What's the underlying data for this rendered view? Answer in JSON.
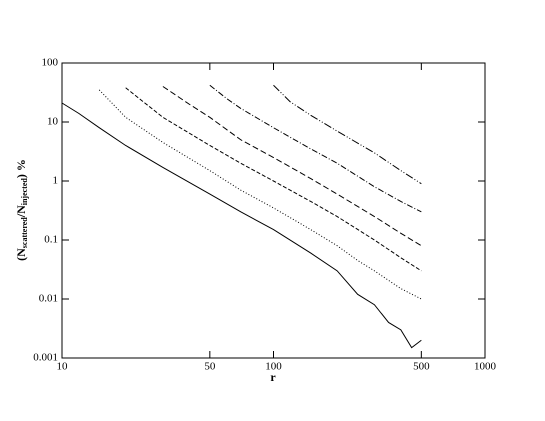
{
  "chart_data": {
    "type": "line",
    "x_label": "r",
    "y_label": {
      "parts": [
        "(N",
        "scattered",
        "/N",
        "injected",
        ") %"
      ]
    },
    "xscale": "log",
    "yscale": "log",
    "xlim": [
      10,
      1000
    ],
    "ylim": [
      0.001,
      100
    ],
    "xticks": [
      10,
      50,
      100,
      500,
      1000
    ],
    "yticks": [
      0.001,
      0.01,
      0.1,
      1,
      10,
      100
    ],
    "series": [
      {
        "color": "#000000",
        "dash": "none",
        "x": [
          10,
          12,
          15,
          20,
          30,
          50,
          70,
          100,
          150,
          200,
          250,
          300,
          350,
          400,
          450,
          500
        ],
        "values": [
          21,
          14,
          8,
          4,
          1.7,
          0.6,
          0.3,
          0.15,
          0.06,
          0.03,
          0.012,
          0.008,
          0.004,
          0.003,
          0.0015,
          0.002
        ]
      },
      {
        "color": "#000000",
        "dash": "1,2",
        "x": [
          15,
          20,
          30,
          50,
          70,
          100,
          150,
          200,
          250,
          300,
          400,
          500
        ],
        "values": [
          35,
          12,
          4.5,
          1.5,
          0.7,
          0.35,
          0.15,
          0.08,
          0.045,
          0.03,
          0.015,
          0.01
        ]
      },
      {
        "color": "#000000",
        "dash": "4,2",
        "x": [
          20,
          30,
          50,
          70,
          100,
          150,
          200,
          300,
          400,
          500
        ],
        "values": [
          38,
          12,
          4,
          2,
          1,
          0.45,
          0.25,
          0.1,
          0.05,
          0.03
        ]
      },
      {
        "color": "#000000",
        "dash": "6,3",
        "x": [
          30,
          40,
          50,
          70,
          100,
          150,
          200,
          300,
          400,
          500
        ],
        "values": [
          40,
          20,
          12,
          5,
          2.5,
          1.1,
          0.6,
          0.25,
          0.13,
          0.08
        ]
      },
      {
        "color": "#000000",
        "dash": "6,2,1,2",
        "x": [
          50,
          60,
          70,
          100,
          150,
          200,
          300,
          400,
          500
        ],
        "values": [
          42,
          25,
          17,
          8,
          3.5,
          2,
          0.8,
          0.45,
          0.3
        ]
      },
      {
        "color": "#000000",
        "dash": "8,2,1,2,1,2",
        "x": [
          100,
          120,
          150,
          200,
          300,
          400,
          500
        ],
        "values": [
          42,
          22,
          13,
          7,
          3,
          1.5,
          0.9
        ]
      }
    ]
  }
}
